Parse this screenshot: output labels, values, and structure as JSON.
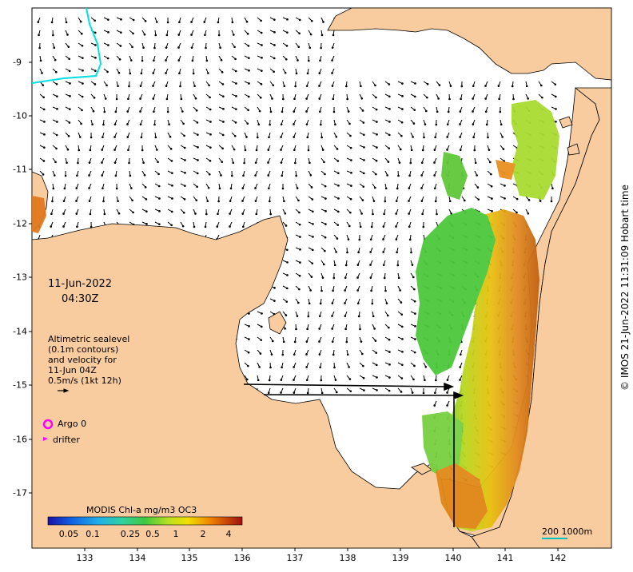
{
  "map": {
    "date": "11-Jun-2022",
    "time": "04:30Z",
    "annotation_lines": [
      "Altimetric sealevel",
      "(0.1m contours)",
      "and velocity for",
      "11-Jun 04Z",
      "0.5m/s (1kt 12h)"
    ],
    "legend": {
      "argo_label": "Argo 0",
      "drifter_label": "drifter"
    },
    "colorbar": {
      "title": "MODIS Chl-a mg/m3 OC3",
      "ticks": [
        "0.05",
        "0.1",
        "0.25",
        "0.5",
        "1",
        "2",
        "4"
      ]
    },
    "scale_bar_label": "200  1000m",
    "credit": "© IMOS 21-Jun-2022 11:31:09 Hobart time",
    "x_ticks": [
      "133",
      "134",
      "135",
      "136",
      "137",
      "138",
      "139",
      "140",
      "141",
      "142"
    ],
    "y_ticks": [
      "-9",
      "-10",
      "-11",
      "-12",
      "-13",
      "-14",
      "-15",
      "-16",
      "-17"
    ],
    "colors": {
      "land": "#f9cca0",
      "sea": "#ffffff",
      "argo_marker": "#ff00ff",
      "drifter_marker": "#ff00ff",
      "contour": "#00e0e0"
    }
  }
}
